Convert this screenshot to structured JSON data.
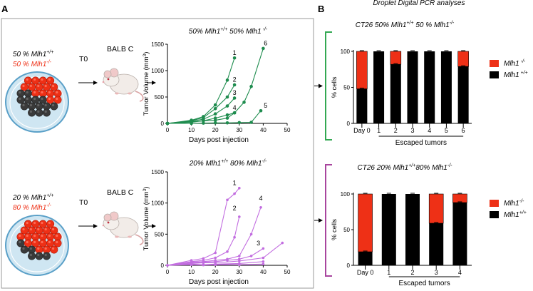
{
  "panels": {
    "a": "A",
    "b": "B"
  },
  "header": "Droplet Digital PCR analyses",
  "colors": {
    "green": "#1e8c4e",
    "purple": "#c26de0",
    "red": "#ee3016",
    "black": "#000000",
    "dish_rim": "#5aa0c8",
    "dish_fill": "#cfe6f2",
    "frame": "#9a9a9a",
    "bracket_green": "#33a852",
    "bracket_purple": "#a8459e"
  },
  "experiments": [
    {
      "mix": {
        "ratio_wt": "50 %",
        "ratio_ko": "50 %",
        "gene": "Mlh1",
        "sup_wt": "+/+",
        "sup_ko": "-/-"
      },
      "timepoint": "T0",
      "mouse": "BALB C",
      "dish": {
        "red_cells": 17,
        "black_cells": 14
      }
    },
    {
      "mix": {
        "ratio_wt": "20 %",
        "ratio_ko": "80 %",
        "gene": "Mlh1",
        "sup_wt": "+/+",
        "sup_ko": "-/-"
      },
      "timepoint": "T0",
      "mouse": "BALB C",
      "dish": {
        "red_cells": 22,
        "black_cells": 6
      }
    }
  ],
  "chart_data": [
    {
      "type": "line",
      "title": "50%  Mlh1+/+ 50% Mlh1-/-",
      "title_parts": [
        "50%  ",
        "Mlh1",
        "+/+",
        " 50% ",
        "Mlh1",
        " -/-"
      ],
      "xlabel": "Days post injection",
      "ylabel": "Tumor Volume (mm3)",
      "ylabel_main": "Tumor Volume (mm",
      "ylabel_sup": "3",
      "ylabel_end": ")",
      "xlim": [
        0,
        50
      ],
      "ylim": [
        0,
        1500
      ],
      "xticks": [
        0,
        10,
        20,
        30,
        40,
        50
      ],
      "yticks": [
        0,
        500,
        1000,
        1500
      ],
      "series": [
        {
          "name": "1",
          "x": [
            0,
            10,
            15,
            20,
            25,
            28
          ],
          "y": [
            0,
            60,
            130,
            350,
            820,
            1240
          ]
        },
        {
          "name": "2",
          "x": [
            0,
            10,
            15,
            20,
            25,
            28
          ],
          "y": [
            0,
            50,
            110,
            280,
            500,
            730
          ]
        },
        {
          "name": "3",
          "x": [
            0,
            10,
            15,
            20,
            25,
            28
          ],
          "y": [
            0,
            40,
            80,
            180,
            330,
            480
          ]
        },
        {
          "name": "4",
          "x": [
            0,
            10,
            15,
            20,
            25,
            28
          ],
          "y": [
            0,
            30,
            50,
            100,
            160,
            200
          ]
        },
        {
          "name": "5",
          "x": [
            0,
            10,
            15,
            20,
            25,
            30,
            35,
            39
          ],
          "y": [
            0,
            0,
            5,
            10,
            10,
            15,
            20,
            240
          ]
        },
        {
          "name": "6",
          "x": [
            0,
            10,
            15,
            20,
            25,
            28,
            32,
            35,
            40
          ],
          "y": [
            0,
            20,
            50,
            60,
            100,
            200,
            400,
            700,
            1420
          ]
        }
      ],
      "series_label_positions": [
        [
          28,
          1300
        ],
        [
          28,
          790
        ],
        [
          28,
          540
        ],
        [
          28,
          260
        ],
        [
          41,
          300
        ],
        [
          41,
          1480
        ]
      ]
    },
    {
      "type": "line",
      "title": "20% Mlh1+/+ 80% Mlh1-/-",
      "title_parts": [
        "20% ",
        "Mlh1",
        "+/+",
        " 80% ",
        "Mlh1",
        "-/-"
      ],
      "xlabel": "Days post injection",
      "ylabel": "Tumor Volume (mm3)",
      "ylabel_main": "Tumor Volume (mm",
      "ylabel_sup": "3",
      "ylabel_end": ")",
      "xlim": [
        0,
        50
      ],
      "ylim": [
        0,
        1500
      ],
      "xticks": [
        0,
        10,
        20,
        30,
        40,
        50
      ],
      "yticks": [
        0,
        500,
        1000,
        1500
      ],
      "series": [
        {
          "name": "1",
          "x": [
            0,
            10,
            15,
            20,
            25,
            28,
            30
          ],
          "y": [
            0,
            80,
            110,
            200,
            1050,
            1150,
            1240
          ]
        },
        {
          "name": "2",
          "x": [
            0,
            10,
            15,
            20,
            25,
            28,
            30
          ],
          "y": [
            0,
            60,
            80,
            120,
            220,
            450,
            780
          ]
        },
        {
          "name": "4",
          "x": [
            0,
            10,
            15,
            20,
            25,
            30,
            35,
            39
          ],
          "y": [
            0,
            50,
            60,
            80,
            100,
            150,
            500,
            930
          ]
        },
        {
          "name": "3",
          "x": [
            0,
            10,
            15,
            20,
            25,
            30,
            35,
            40
          ],
          "y": [
            0,
            40,
            50,
            60,
            80,
            100,
            150,
            270
          ]
        },
        {
          "name": "",
          "x": [
            0,
            10,
            15,
            20,
            30,
            40,
            48
          ],
          "y": [
            0,
            30,
            40,
            40,
            70,
            120,
            360
          ]
        },
        {
          "name": "",
          "x": [
            0,
            10,
            15,
            20,
            30,
            40
          ],
          "y": [
            0,
            20,
            10,
            20,
            30,
            60
          ]
        },
        {
          "name": "",
          "x": [
            0,
            10,
            15,
            20,
            30,
            40
          ],
          "y": [
            0,
            10,
            5,
            10,
            10,
            20
          ]
        }
      ],
      "series_label_positions": [
        [
          28,
          1290
        ],
        [
          28,
          880
        ],
        [
          39,
          1040
        ],
        [
          38,
          320
        ],
        [
          0,
          0
        ],
        [
          0,
          0
        ],
        [
          0,
          0
        ]
      ]
    },
    {
      "type": "bar",
      "stacked": true,
      "title": "CT26 50% Mlh1+/+ 50 % Mlh1-/-",
      "title_parts": [
        "CT26 50% ",
        "Mlh1",
        "+/+",
        " 50 % ",
        "Mlh1",
        "-/-"
      ],
      "ylabel": "% cells",
      "xlabel": "Escaped tumors",
      "ylim": [
        0,
        100
      ],
      "yticks": [
        0,
        50,
        100
      ],
      "categories": [
        "Day 0",
        "1",
        "2",
        "3",
        "4",
        "5",
        "6"
      ],
      "series": [
        {
          "name": "Mlh1 +/+",
          "legend_gene": "Mlh1",
          "legend_sup": " +/+",
          "values": [
            48,
            100,
            82,
            100,
            100,
            100,
            79
          ]
        },
        {
          "name": "Mlh1 -/-",
          "legend_gene": "Mlh1",
          "legend_sup": " -/-",
          "values": [
            52,
            0,
            18,
            0,
            0,
            0,
            21
          ]
        }
      ]
    },
    {
      "type": "bar",
      "stacked": true,
      "title": "CT26 20% Mlh1+/+80% Mlh1-/-",
      "title_parts": [
        "CT26 20% ",
        "Mlh1",
        "+/+",
        "80% ",
        "Mlh1",
        "-/-"
      ],
      "ylabel": "% cells",
      "xlabel": "Escaped tumors",
      "ylim": [
        0,
        100
      ],
      "yticks": [
        0,
        50,
        100
      ],
      "categories": [
        "Day 0",
        "1",
        "2",
        "3",
        "4"
      ],
      "series": [
        {
          "name": "Mlh1+/+",
          "legend_gene": "Mlh1",
          "legend_sup": "+/+",
          "values": [
            19,
            100,
            100,
            59,
            88
          ]
        },
        {
          "name": "Mlh1-/-",
          "legend_gene": "Mlh1",
          "legend_sup": "-/-",
          "values": [
            81,
            0,
            0,
            41,
            12
          ]
        }
      ]
    }
  ]
}
